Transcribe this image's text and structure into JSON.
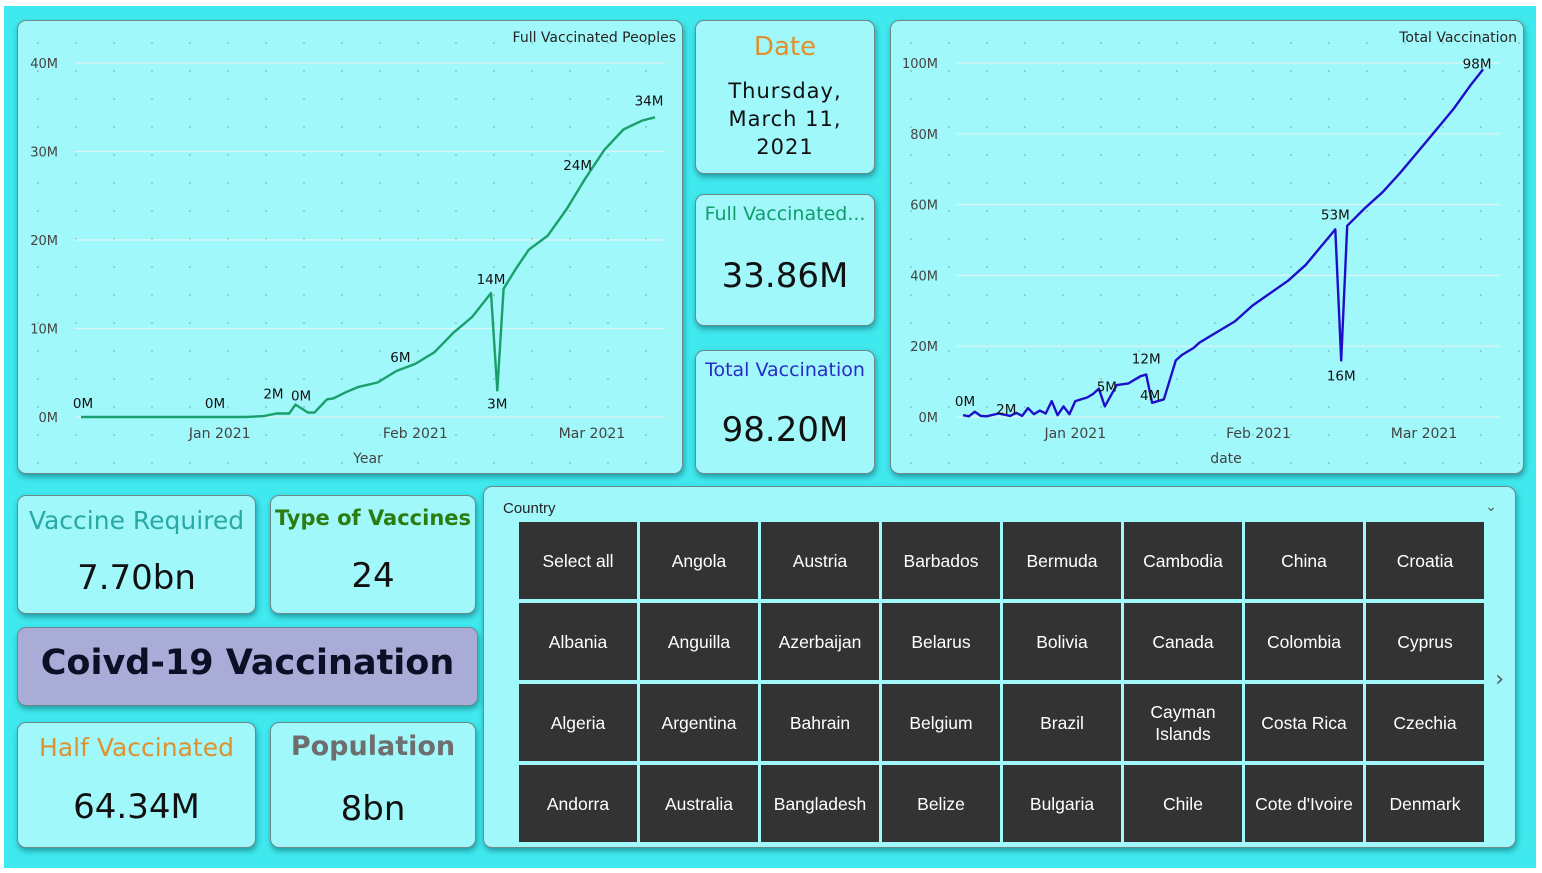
{
  "charts": {
    "full": {
      "title": "Full Vaccinated Peoples",
      "xlabel": "Year",
      "line_color": "#1a9e6b"
    },
    "total": {
      "title": "Total Vaccination",
      "xlabel": "date",
      "line_color": "#1f0fc8"
    }
  },
  "chart_data": [
    {
      "type": "line",
      "title": "Full Vaccinated Peoples",
      "xlabel": "Year",
      "ylabel": "",
      "y_unit": "millions",
      "ylim": [
        0,
        40
      ],
      "y_ticks": [
        0,
        10,
        20,
        30,
        40
      ],
      "y_tick_labels": [
        "0M",
        "10M",
        "20M",
        "30M",
        "40M"
      ],
      "xlim": [
        "2020-12-10",
        "2021-03-11"
      ],
      "x_ticks": [
        "2021-01-01",
        "2021-02-01",
        "2021-03-01"
      ],
      "x_tick_labels": [
        "Jan 2021",
        "Feb 2021",
        "Mar 2021"
      ],
      "grid": true,
      "series": [
        {
          "x": [
            "2020-12-10",
            "2020-12-13",
            "2020-12-16",
            "2020-12-19",
            "2020-12-22",
            "2020-12-25",
            "2020-12-28",
            "2020-12-31",
            "2021-01-03",
            "2021-01-05",
            "2021-01-08",
            "2021-01-10",
            "2021-01-12",
            "2021-01-13",
            "2021-01-15",
            "2021-01-16",
            "2021-01-18",
            "2021-01-19",
            "2021-01-21",
            "2021-01-23",
            "2021-01-26",
            "2021-01-29",
            "2021-02-01",
            "2021-02-04",
            "2021-02-07",
            "2021-02-10",
            "2021-02-13",
            "2021-02-14",
            "2021-02-15",
            "2021-02-17",
            "2021-02-19",
            "2021-02-22",
            "2021-02-25",
            "2021-02-28",
            "2021-03-03",
            "2021-03-06",
            "2021-03-09",
            "2021-03-11"
          ],
          "values": [
            0,
            0,
            0,
            0,
            0,
            0,
            0,
            0,
            0,
            0,
            0.1,
            0.4,
            0.4,
            1.4,
            0.5,
            0.5,
            2.0,
            2.1,
            2.8,
            3.4,
            3.9,
            5.2,
            6.0,
            7.3,
            9.5,
            11.3,
            14.0,
            3.0,
            14.5,
            16.8,
            18.9,
            20.5,
            23.5,
            27.0,
            30.2,
            32.5,
            33.5,
            33.86
          ]
        }
      ],
      "data_labels": [
        "0M",
        "0M",
        "2M",
        "0M",
        "6M",
        "14M",
        "3M",
        "24M",
        "34M"
      ]
    },
    {
      "type": "line",
      "title": "Total Vaccination",
      "xlabel": "date",
      "ylabel": "",
      "y_unit": "millions",
      "ylim": [
        0,
        100
      ],
      "y_ticks": [
        0,
        20,
        40,
        60,
        80,
        100
      ],
      "y_tick_labels": [
        "0M",
        "20M",
        "40M",
        "60M",
        "80M",
        "100M"
      ],
      "xlim": [
        "2020-12-13",
        "2021-03-12"
      ],
      "x_ticks": [
        "2021-01-01",
        "2021-02-01",
        "2021-03-01"
      ],
      "x_tick_labels": [
        "Jan 2021",
        "Feb 2021",
        "Mar 2021"
      ],
      "grid": true,
      "series": [
        {
          "x": [
            "2020-12-13",
            "2020-12-14",
            "2020-12-15",
            "2020-12-16",
            "2020-12-17",
            "2020-12-19",
            "2020-12-21",
            "2020-12-22",
            "2020-12-23",
            "2020-12-24",
            "2020-12-25",
            "2020-12-26",
            "2020-12-27",
            "2020-12-28",
            "2020-12-29",
            "2020-12-30",
            "2020-12-31",
            "2021-01-01",
            "2021-01-02",
            "2021-01-03",
            "2021-01-04",
            "2021-01-05",
            "2021-01-06",
            "2021-01-08",
            "2021-01-10",
            "2021-01-11",
            "2021-01-12",
            "2021-01-13",
            "2021-01-14",
            "2021-01-16",
            "2021-01-18",
            "2021-01-19",
            "2021-01-20",
            "2021-01-21",
            "2021-01-22",
            "2021-01-25",
            "2021-01-28",
            "2021-01-31",
            "2021-02-03",
            "2021-02-06",
            "2021-02-09",
            "2021-02-12",
            "2021-02-14",
            "2021-02-15",
            "2021-02-16",
            "2021-02-19",
            "2021-02-22",
            "2021-02-25",
            "2021-02-28",
            "2021-03-03",
            "2021-03-06",
            "2021-03-09",
            "2021-03-11"
          ],
          "values": [
            0.5,
            0.2,
            1.5,
            0.3,
            0.2,
            1.0,
            0.3,
            1.2,
            0.3,
            2.5,
            0.8,
            1.8,
            1.0,
            4.5,
            0.5,
            3.0,
            0.8,
            4.5,
            5.0,
            5.5,
            6.5,
            8.0,
            3.0,
            9.0,
            9.5,
            10.5,
            11.5,
            12.0,
            4.0,
            5.0,
            16.0,
            17.5,
            18.5,
            19.5,
            21.0,
            24.0,
            27.0,
            31.5,
            35.0,
            38.5,
            43.0,
            49.0,
            53.0,
            16.0,
            54.0,
            59.0,
            63.5,
            69.0,
            75.0,
            81.0,
            87.0,
            94.0,
            98.2
          ]
        }
      ],
      "data_labels": [
        "0M",
        "2M",
        "5M",
        "12M",
        "4M",
        "53M",
        "16M",
        "98M"
      ]
    }
  ],
  "date_card": {
    "title": "Date",
    "value": "Thursday, March 11, 2021"
  },
  "kpis": {
    "full_vaccinated": {
      "title": "Full Vaccinated...",
      "value": "33.86M",
      "title_color": "#0f9d6c"
    },
    "total_vaccination": {
      "title": "Total Vaccination",
      "value": "98.20M",
      "title_color": "#2a2ac8"
    },
    "vaccine_required": {
      "title": "Vaccine Required",
      "value": "7.70bn",
      "title_color": "#29a8a4"
    },
    "type_of_vaccines": {
      "title": "Type of Vaccines",
      "value": "24",
      "title_color": "#2b7d12"
    },
    "half_vaccinated": {
      "title": "Half Vaccinated",
      "value": "64.34M",
      "title_color": "#e0902e"
    },
    "population": {
      "title": "Population",
      "value": "8bn",
      "title_color": "#6e6e6e"
    }
  },
  "banner": {
    "text": "Coivd-19 Vaccination"
  },
  "slicer": {
    "title": "Country",
    "chevron_icon": "chevron-down-icon",
    "next_icon": "chevron-right-icon",
    "items": [
      "Select all",
      "Angola",
      "Austria",
      "Barbados",
      "Bermuda",
      "Cambodia",
      "China",
      "Croatia",
      "Albania",
      "Anguilla",
      "Azerbaijan",
      "Belarus",
      "Bolivia",
      "Canada",
      "Colombia",
      "Cyprus",
      "Algeria",
      "Argentina",
      "Bahrain",
      "Belgium",
      "Brazil",
      "Cayman Islands",
      "Costa Rica",
      "Czechia",
      "Andorra",
      "Australia",
      "Bangladesh",
      "Belize",
      "Bulgaria",
      "Chile",
      "Cote d'Ivoire",
      "Denmark"
    ]
  },
  "colors": {
    "background": "#3fe9ee",
    "card": "#a1f8fa",
    "date_title": "#e0902e",
    "slicer_cell": "#333333",
    "banner": "#a9acd6"
  }
}
